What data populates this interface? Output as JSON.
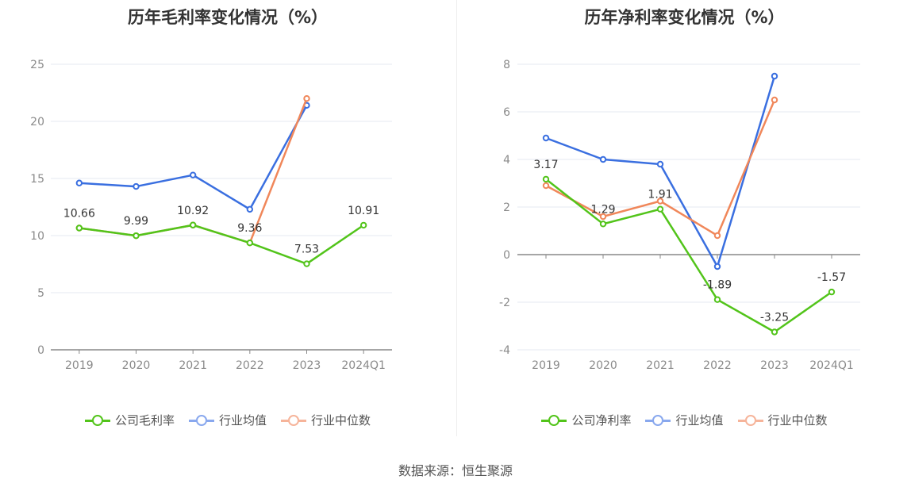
{
  "source": "数据来源：恒生聚源",
  "colors": {
    "company": "#52c41a",
    "average": "#3a6fe0",
    "median": "#f0875a",
    "axis": "#888888",
    "grid": "#e6e9f2"
  },
  "legend_colors": {
    "company": "#52c41a",
    "average": "#89a8ee",
    "median": "#f6b49a"
  },
  "chart_data": [
    {
      "type": "line",
      "title": "历年毛利率变化情况（%）",
      "categories": [
        "2019",
        "2020",
        "2021",
        "2022",
        "2023",
        "2024Q1"
      ],
      "ylim": [
        0,
        25
      ],
      "yticks": [
        0,
        5,
        10,
        15,
        20,
        25
      ],
      "series": [
        {
          "name": "公司毛利率",
          "key": "company",
          "values": [
            10.66,
            9.99,
            10.92,
            9.36,
            7.53,
            10.91
          ],
          "labels": [
            "10.66",
            "9.99",
            "10.92",
            "9.36",
            "7.53",
            "10.91"
          ]
        },
        {
          "name": "行业均值",
          "key": "average",
          "values": [
            14.6,
            14.3,
            15.3,
            12.3,
            21.4,
            null
          ]
        },
        {
          "name": "行业中位数",
          "key": "median",
          "values": [
            10.66,
            9.99,
            10.92,
            9.36,
            22.0,
            null
          ]
        }
      ]
    },
    {
      "type": "line",
      "title": "历年净利率变化情况（%）",
      "categories": [
        "2019",
        "2020",
        "2021",
        "2022",
        "2023",
        "2024Q1"
      ],
      "ylim": [
        -4,
        8
      ],
      "yticks": [
        -4,
        -2,
        0,
        2,
        4,
        6,
        8
      ],
      "series": [
        {
          "name": "公司净利率",
          "key": "company",
          "values": [
            3.17,
            1.29,
            1.91,
            -1.89,
            -3.25,
            -1.57
          ],
          "labels": [
            "3.17",
            "1.29",
            "1.91",
            "-1.89",
            "-3.25",
            "-1.57"
          ]
        },
        {
          "name": "行业均值",
          "key": "average",
          "values": [
            4.9,
            4.0,
            3.8,
            -0.5,
            7.5,
            null
          ]
        },
        {
          "name": "行业中位数",
          "key": "median",
          "values": [
            2.9,
            1.6,
            2.25,
            0.8,
            6.5,
            null
          ]
        }
      ]
    }
  ]
}
